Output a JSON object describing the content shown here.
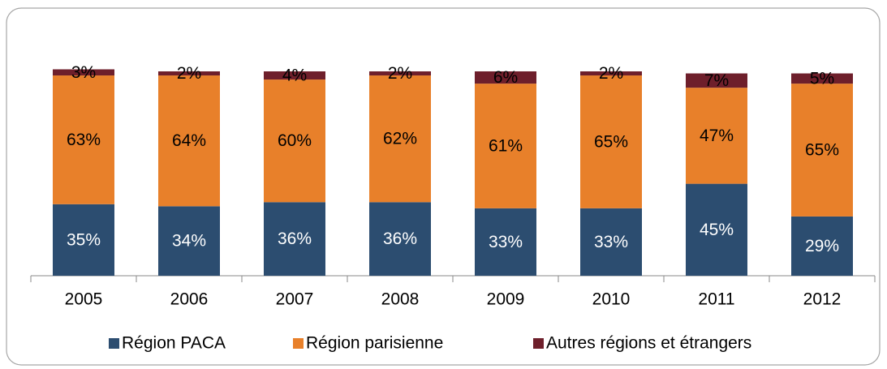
{
  "chart_data": {
    "type": "stacked_bar",
    "categories": [
      "2005",
      "2006",
      "2007",
      "2008",
      "2009",
      "2010",
      "2011",
      "2012"
    ],
    "series": [
      {
        "name": "Région PACA",
        "color": "#2c4d70",
        "values": [
          35,
          34,
          36,
          36,
          33,
          33,
          45,
          29
        ],
        "value_labels": [
          "35%",
          "34%",
          "36%",
          "36%",
          "33%",
          "33%",
          "45%",
          "29%"
        ]
      },
      {
        "name": "Région parisienne",
        "color": "#e8802a",
        "values": [
          63,
          64,
          60,
          62,
          61,
          65,
          47,
          65
        ],
        "value_labels": [
          "63%",
          "64%",
          "60%",
          "62%",
          "61%",
          "65%",
          "47%",
          "65%"
        ]
      },
      {
        "name": "Autres régions et étrangers",
        "color": "#6e1f2b",
        "values": [
          3,
          2,
          4,
          2,
          6,
          2,
          7,
          5
        ],
        "value_labels": [
          "3%",
          "2%",
          "4%",
          "2%",
          "6%",
          "2%",
          "7%",
          "5%"
        ]
      }
    ],
    "ylim": [
      0,
      100
    ],
    "legend": "bottom"
  }
}
